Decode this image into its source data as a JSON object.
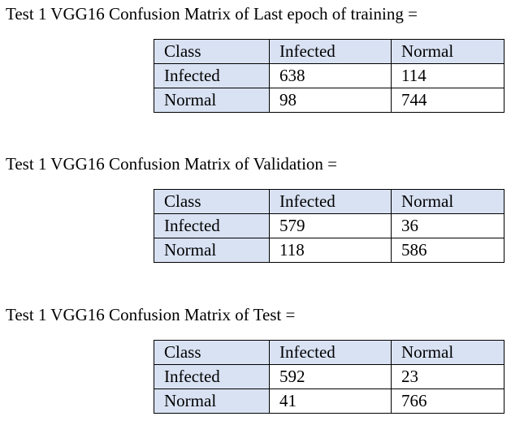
{
  "matrices": [
    {
      "caption": "Test 1 VGG16 Confusion Matrix of Last epoch of training =",
      "header": [
        "Class",
        "Infected",
        "Normal"
      ],
      "rows": [
        [
          "Infected",
          "638",
          "114"
        ],
        [
          "Normal",
          "98",
          "744"
        ]
      ]
    },
    {
      "caption": "Test 1 VGG16 Confusion Matrix of Validation =",
      "header": [
        "Class",
        "Infected",
        "Normal"
      ],
      "rows": [
        [
          "Infected",
          "579",
          "36"
        ],
        [
          "Normal",
          "118",
          "586"
        ]
      ]
    },
    {
      "caption": "Test 1 VGG16 Confusion Matrix of Test =",
      "header": [
        "Class",
        "Infected",
        "Normal"
      ],
      "rows": [
        [
          "Infected",
          "592",
          "23"
        ],
        [
          "Normal",
          "41",
          "766"
        ]
      ]
    }
  ],
  "colors": {
    "header_fill": "#d9e2f3",
    "cell_fill": "#ffffff",
    "border": "#000000",
    "text": "#000000"
  }
}
